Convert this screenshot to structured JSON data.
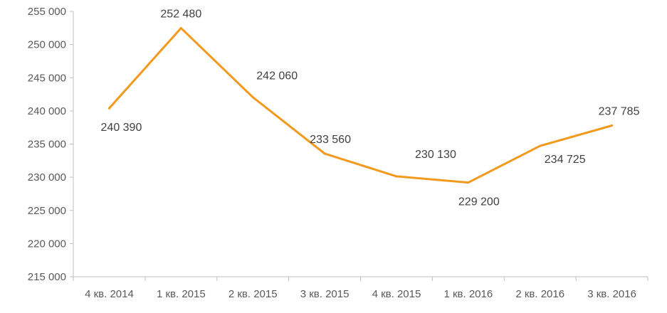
{
  "chart_data": {
    "type": "line",
    "title": "",
    "xlabel": "",
    "ylabel": "",
    "categories": [
      "4 кв. 2014",
      "1 кв. 2015",
      "2 кв. 2015",
      "3 кв. 2015",
      "4 кв. 2015",
      "1 кв. 2016",
      "2 кв. 2016",
      "3 кв. 2016"
    ],
    "series": [
      {
        "values": [
          240390,
          252480,
          242060,
          233560,
          230130,
          229200,
          234725,
          237785
        ],
        "labels": [
          "240 390",
          "252 480",
          "242 060",
          "233 560",
          "230 130",
          "229 200",
          "234 725",
          "237 785"
        ],
        "color": "#F39A1E"
      }
    ],
    "ylim": [
      215000,
      255000
    ],
    "yticks": [
      215000,
      220000,
      225000,
      230000,
      235000,
      240000,
      245000,
      250000,
      255000
    ],
    "ytick_labels": [
      "215 000",
      "220 000",
      "225 000",
      "230 000",
      "235 000",
      "240 000",
      "245 000",
      "250 000",
      "255 000"
    ],
    "grid": false,
    "legend": "none",
    "axis_color": "#BFBFBF"
  }
}
